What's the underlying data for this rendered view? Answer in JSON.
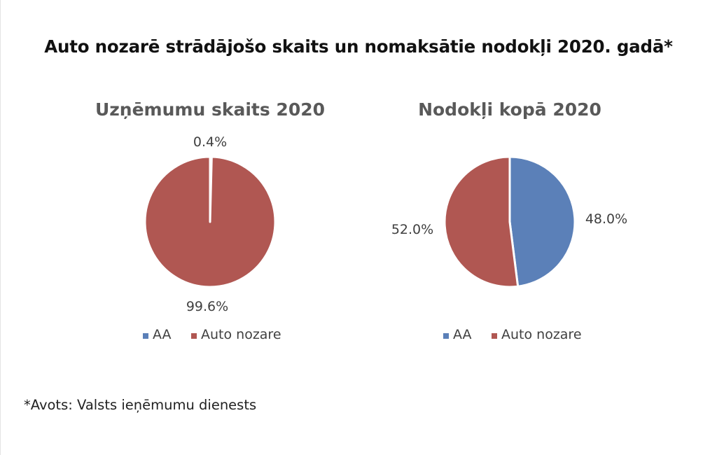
{
  "title": "Auto nozarē strādājošo skaits un nomaksātie nodokļi 2020. gadā*",
  "footnote": "*Avots: Valsts ieņēmumu dienests",
  "colors": {
    "AA": "#5b80b8",
    "Auto nozare": "#b05752"
  },
  "chart_data": [
    {
      "type": "pie",
      "title": "Uzņēmumu skaits 2020",
      "categories": [
        "AA",
        "Auto nozare"
      ],
      "values": [
        0.4,
        99.6
      ],
      "data_labels": [
        "0.4%",
        "99.6%"
      ],
      "legend": [
        "AA",
        "Auto nozare"
      ],
      "legend_position": "bottom"
    },
    {
      "type": "pie",
      "title": "Nodokļi kopā 2020",
      "categories": [
        "AA",
        "Auto nozare"
      ],
      "values": [
        48.0,
        52.0
      ],
      "data_labels": [
        "48.0%",
        "52.0%"
      ],
      "legend": [
        "AA",
        "Auto nozare"
      ],
      "legend_position": "bottom"
    }
  ]
}
